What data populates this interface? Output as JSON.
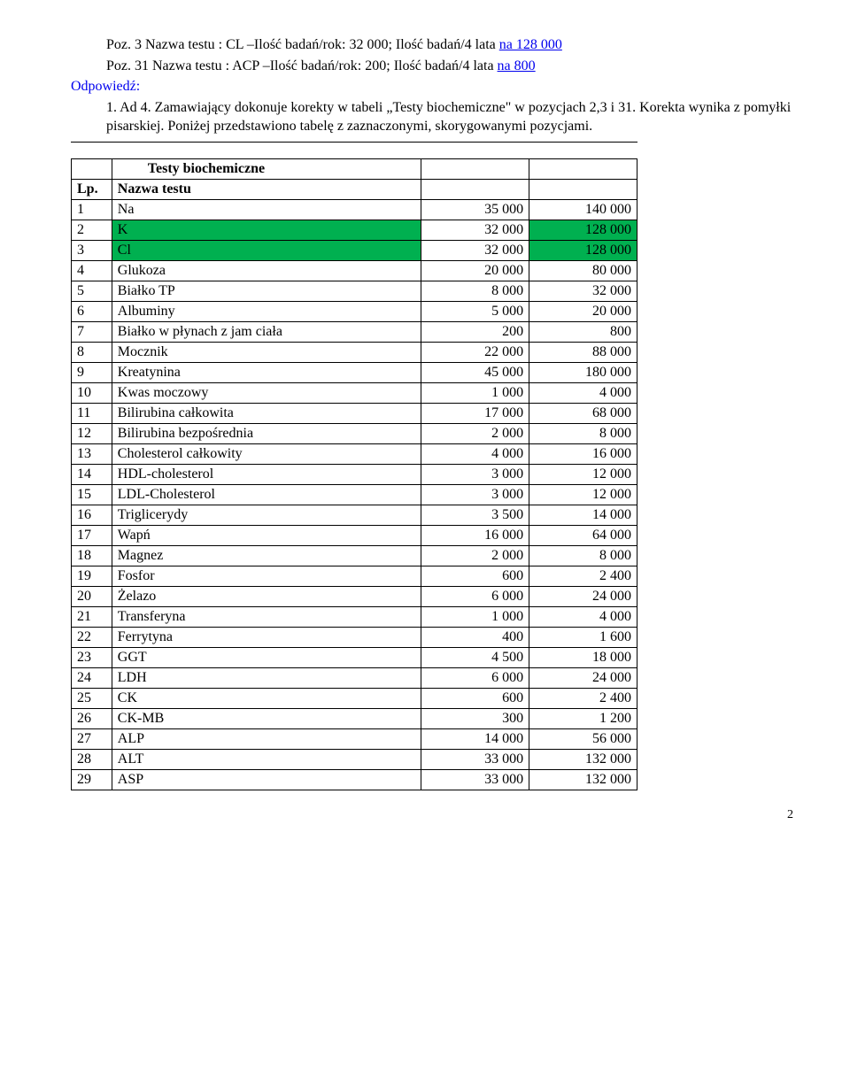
{
  "intro": {
    "line1_prefix": "Poz. 3 Nazwa testu : CL –Ilość badań/rok: 32 000; Ilość badań/4 lata ",
    "line1_link": "na 128 000",
    "line2_prefix": "Poz. 31 Nazwa testu : ACP –Ilość badań/rok: 200; Ilość badań/4 lata ",
    "line2_link": "na 800",
    "answer_label": "Odpowiedź:",
    "ad4_label": "1.  Ad 4.",
    "ad4_body": "Zamawiający dokonuje korekty w tabeli „Testy biochemiczne\" w pozycjach 2,3 i 31. Korekta wynika z pomyłki pisarskiej. Poniżej przedstawiono tabelę z zaznaczonymi, skorygowanymi pozycjami."
  },
  "table": {
    "title": "Testy biochemiczne",
    "header_lp": "Lp.",
    "header_name": "Nazwa testu",
    "rows": [
      {
        "lp": "1",
        "name": "Na",
        "v1": "35 000",
        "v2": "140 000",
        "hl": false
      },
      {
        "lp": "2",
        "name": "K",
        "v1": "32 000",
        "v2": "128 000",
        "hl": true
      },
      {
        "lp": "3",
        "name": "Cl",
        "v1": "32 000",
        "v2": "128 000",
        "hl": true
      },
      {
        "lp": "4",
        "name": "Glukoza",
        "v1": "20 000",
        "v2": "80 000",
        "hl": false
      },
      {
        "lp": "5",
        "name": "Białko TP",
        "v1": "8 000",
        "v2": "32 000",
        "hl": false
      },
      {
        "lp": "6",
        "name": "Albuminy",
        "v1": "5 000",
        "v2": "20 000",
        "hl": false
      },
      {
        "lp": "7",
        "name": "Białko w płynach z jam ciała",
        "v1": "200",
        "v2": "800",
        "hl": false
      },
      {
        "lp": "8",
        "name": "Mocznik",
        "v1": "22 000",
        "v2": "88 000",
        "hl": false
      },
      {
        "lp": "9",
        "name": "Kreatynina",
        "v1": "45 000",
        "v2": "180 000",
        "hl": false
      },
      {
        "lp": "10",
        "name": "Kwas moczowy",
        "v1": "1 000",
        "v2": "4 000",
        "hl": false
      },
      {
        "lp": "11",
        "name": "Bilirubina całkowita",
        "v1": "17 000",
        "v2": "68 000",
        "hl": false
      },
      {
        "lp": "12",
        "name": "Bilirubina bezpośrednia",
        "v1": "2 000",
        "v2": "8 000",
        "hl": false
      },
      {
        "lp": "13",
        "name": "Cholesterol całkowity",
        "v1": "4 000",
        "v2": "16 000",
        "hl": false
      },
      {
        "lp": "14",
        "name": "HDL-cholesterol",
        "v1": "3 000",
        "v2": "12 000",
        "hl": false
      },
      {
        "lp": "15",
        "name": "LDL-Cholesterol",
        "v1": "3 000",
        "v2": "12 000",
        "hl": false
      },
      {
        "lp": "16",
        "name": "Triglicerydy",
        "v1": "3 500",
        "v2": "14 000",
        "hl": false
      },
      {
        "lp": "17",
        "name": "Wapń",
        "v1": "16 000",
        "v2": "64 000",
        "hl": false
      },
      {
        "lp": "18",
        "name": "Magnez",
        "v1": "2 000",
        "v2": "8 000",
        "hl": false
      },
      {
        "lp": "19",
        "name": "Fosfor",
        "v1": "600",
        "v2": "2 400",
        "hl": false
      },
      {
        "lp": "20",
        "name": "Żelazo",
        "v1": "6 000",
        "v2": "24 000",
        "hl": false
      },
      {
        "lp": "21",
        "name": "Transferyna",
        "v1": "1 000",
        "v2": "4 000",
        "hl": false
      },
      {
        "lp": "22",
        "name": "Ferrytyna",
        "v1": "400",
        "v2": "1 600",
        "hl": false
      },
      {
        "lp": "23",
        "name": "GGT",
        "v1": "4 500",
        "v2": "18 000",
        "hl": false
      },
      {
        "lp": "24",
        "name": "LDH",
        "v1": "6 000",
        "v2": "24 000",
        "hl": false
      },
      {
        "lp": "25",
        "name": "CK",
        "v1": "600",
        "v2": "2 400",
        "hl": false
      },
      {
        "lp": "26",
        "name": "CK-MB",
        "v1": "300",
        "v2": "1 200",
        "hl": false
      },
      {
        "lp": "27",
        "name": "ALP",
        "v1": "14 000",
        "v2": "56 000",
        "hl": false
      },
      {
        "lp": "28",
        "name": "ALT",
        "v1": "33 000",
        "v2": "132 000",
        "hl": false
      },
      {
        "lp": "29",
        "name": "ASP",
        "v1": "33 000",
        "v2": "132 000",
        "hl": false
      }
    ]
  },
  "page_number": "2",
  "colors": {
    "link": "#0000ee",
    "highlight": "#00b050",
    "text": "#000000",
    "background": "#ffffff"
  }
}
